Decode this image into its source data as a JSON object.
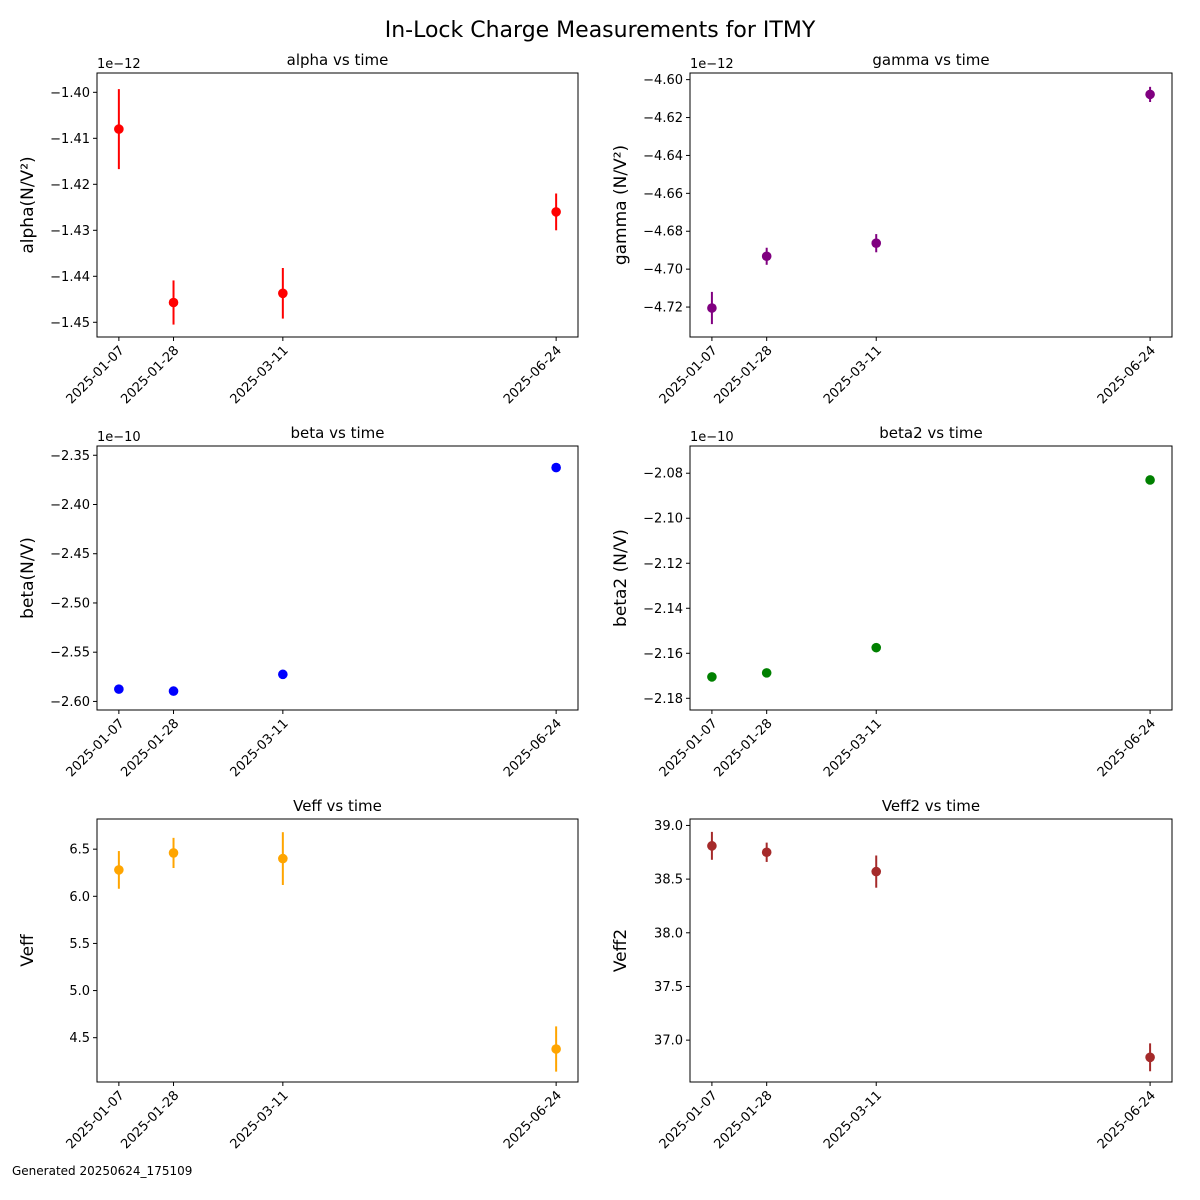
{
  "figure": {
    "title": "In-Lock Charge Measurements for ITMY",
    "footer": "Generated 20250624_175109"
  },
  "chart_data": [
    {
      "type": "scatter",
      "title": "alpha vs time",
      "ylabel": "alpha(N/V²)",
      "offset_text": "1e−12",
      "color": "#ff0000",
      "x": [
        "2025-01-07",
        "2025-01-28",
        "2025-03-11",
        "2025-06-24"
      ],
      "y": [
        -1.408e-12,
        -1.4457e-12,
        -1.4437e-12,
        -1.426e-12
      ],
      "yerr": [
        8.7e-15,
        4.8e-15,
        5.5e-15,
        4e-15
      ],
      "ylim": [
        -1.4532e-12,
        -1.3958e-12
      ],
      "yticks": [
        -1.45e-12,
        -1.44e-12,
        -1.43e-12,
        -1.42e-12,
        -1.41e-12,
        -1.4e-12
      ],
      "ytick_labels": [
        "−1.45",
        "−1.44",
        "−1.43",
        "−1.42",
        "−1.41",
        "−1.40"
      ],
      "grid": false
    },
    {
      "type": "scatter",
      "title": "gamma vs time",
      "ylabel": "gamma (N/V²)",
      "offset_text": "1e−12",
      "color": "#800080",
      "x": [
        "2025-01-07",
        "2025-01-28",
        "2025-03-11",
        "2025-06-24"
      ],
      "y": [
        -4.7205e-12,
        -4.6932e-12,
        -4.6863e-12,
        -4.6078e-12
      ],
      "yerr": [
        8.5e-15,
        4.5e-15,
        4.8e-15,
        4e-15
      ],
      "ylim": [
        -4.7358e-12,
        -4.5965e-12
      ],
      "yticks": [
        -4.72e-12,
        -4.7e-12,
        -4.68e-12,
        -4.66e-12,
        -4.64e-12,
        -4.62e-12,
        -4.6e-12
      ],
      "ytick_labels": [
        "−4.72",
        "−4.70",
        "−4.68",
        "−4.66",
        "−4.64",
        "−4.62",
        "−4.60"
      ],
      "grid": false
    },
    {
      "type": "scatter",
      "title": "beta vs time",
      "ylabel": "beta(N/V)",
      "offset_text": "1e−10",
      "color": "#0000ff",
      "x": [
        "2025-01-07",
        "2025-01-28",
        "2025-03-11",
        "2025-06-24"
      ],
      "y": [
        -2.5875e-10,
        -2.5895e-10,
        -2.5725e-10,
        -2.3625e-10
      ],
      "yerr": [
        9e-15,
        7e-15,
        1.2e-14,
        1e-14
      ],
      "ylim": [
        -2.6087e-10,
        -2.3406e-10
      ],
      "yticks": [
        -2.6e-10,
        -2.55e-10,
        -2.5e-10,
        -2.45e-10,
        -2.4e-10,
        -2.35e-10
      ],
      "ytick_labels": [
        "−2.60",
        "−2.55",
        "−2.50",
        "−2.45",
        "−2.40",
        "−2.35"
      ],
      "grid": false
    },
    {
      "type": "scatter",
      "title": "beta2 vs time",
      "ylabel": "beta2 (N/V)",
      "offset_text": "1e−10",
      "color": "#008000",
      "x": [
        "2025-01-07",
        "2025-01-28",
        "2025-03-11",
        "2025-06-24"
      ],
      "y": [
        -2.1705e-10,
        -2.1687e-10,
        -2.1575e-10,
        -2.083e-10
      ],
      "yerr": [
        1e-13,
        8e-14,
        1.3e-13,
        1.1e-13
      ],
      "ylim": [
        -2.1852e-10,
        -2.0679e-10
      ],
      "yticks": [
        -2.18e-10,
        -2.16e-10,
        -2.14e-10,
        -2.12e-10,
        -2.1e-10,
        -2.08e-10
      ],
      "ytick_labels": [
        "−2.18",
        "−2.16",
        "−2.14",
        "−2.12",
        "−2.10",
        "−2.08"
      ],
      "grid": false
    },
    {
      "type": "scatter",
      "title": "Veff vs time",
      "ylabel": "Veff",
      "offset_text": "",
      "color": "#ffa500",
      "x": [
        "2025-01-07",
        "2025-01-28",
        "2025-03-11",
        "2025-06-24"
      ],
      "y": [
        6.28,
        6.46,
        6.4,
        4.38
      ],
      "yerr": [
        0.2,
        0.16,
        0.28,
        0.24
      ],
      "ylim": [
        4.03,
        6.82
      ],
      "yticks": [
        4.5,
        5.0,
        5.5,
        6.0,
        6.5
      ],
      "ytick_labels": [
        "4.5",
        "5.0",
        "5.5",
        "6.0",
        "6.5"
      ],
      "grid": false
    },
    {
      "type": "scatter",
      "title": "Veff2 vs time",
      "ylabel": "Veff2",
      "offset_text": "",
      "color": "#a52a2a",
      "x": [
        "2025-01-07",
        "2025-01-28",
        "2025-03-11",
        "2025-06-24"
      ],
      "y": [
        38.81,
        38.75,
        38.57,
        36.84
      ],
      "yerr": [
        0.13,
        0.09,
        0.15,
        0.13
      ],
      "ylim": [
        36.61,
        39.06
      ],
      "yticks": [
        37.0,
        37.5,
        38.0,
        38.5,
        39.0
      ],
      "ytick_labels": [
        "37.0",
        "37.5",
        "38.0",
        "38.5",
        "39.0"
      ],
      "grid": false
    }
  ]
}
